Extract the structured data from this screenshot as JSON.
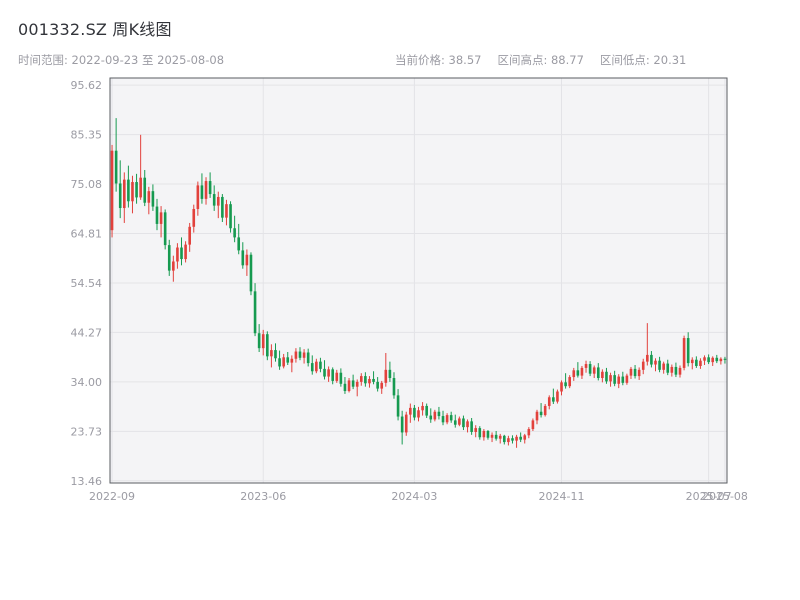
{
  "header": {
    "title": "001332.SZ 周K线图",
    "date_range_label": "时间范围: 2022-09-23 至 2025-08-08",
    "current_price_label": "当前价格: 38.57",
    "range_high_label": "区间高点: 88.77",
    "range_low_label": "区间低点: 20.31"
  },
  "chart_data": {
    "type": "candlestick",
    "title": "001332.SZ 周K线图",
    "interval": "weekly",
    "date_range": [
      "2022-09-23",
      "2025-08-08"
    ],
    "current_price": 38.57,
    "range_high": 88.77,
    "range_low": 20.31,
    "ylim": [
      13.0,
      97.1
    ],
    "y_ticks": [
      95.62,
      85.35,
      75.08,
      64.81,
      54.54,
      44.27,
      34.0,
      23.73,
      13.46
    ],
    "x_ticks": [
      {
        "label": "2022-09",
        "index": 0
      },
      {
        "label": "2023-06",
        "index": 37
      },
      {
        "label": "2024-03",
        "index": 74
      },
      {
        "label": "2024-11",
        "index": 110
      },
      {
        "label": "2025-07",
        "index": 146
      },
      {
        "label": "2025-08",
        "index": 150
      }
    ],
    "legend_position": "none",
    "grid": true,
    "colors": {
      "up": "#e2413c",
      "down": "#169a50",
      "plot_bg": "#f4f4f6",
      "grid": "#e3e3e7",
      "border": "#5a5c62",
      "axis_text": "#9b9ba3"
    },
    "ohlc": [
      [
        65.5,
        83.2,
        64.0,
        82.0
      ],
      [
        82.0,
        88.77,
        73.5,
        75.2
      ],
      [
        75.2,
        80.0,
        68.0,
        70.1
      ],
      [
        70.1,
        77.5,
        67.0,
        76.0
      ],
      [
        76.0,
        78.9,
        70.2,
        71.5
      ],
      [
        71.5,
        76.8,
        69.0,
        75.5
      ],
      [
        75.5,
        77.2,
        71.0,
        72.3
      ],
      [
        72.3,
        85.3,
        71.8,
        76.4
      ],
      [
        76.4,
        78.0,
        70.5,
        71.2
      ],
      [
        71.2,
        74.5,
        68.8,
        73.6
      ],
      [
        73.6,
        75.0,
        69.5,
        70.4
      ],
      [
        70.4,
        72.0,
        65.5,
        66.8
      ],
      [
        66.8,
        70.5,
        64.0,
        69.2
      ],
      [
        69.2,
        69.8,
        61.5,
        62.4
      ],
      [
        62.4,
        63.5,
        56.0,
        57.1
      ],
      [
        57.1,
        60.2,
        54.8,
        59.0
      ],
      [
        59.0,
        62.8,
        57.5,
        61.9
      ],
      [
        61.9,
        64.0,
        58.2,
        59.5
      ],
      [
        59.5,
        63.2,
        58.8,
        62.5
      ],
      [
        62.5,
        67.0,
        61.0,
        66.2
      ],
      [
        66.2,
        70.8,
        65.0,
        69.9
      ],
      [
        69.9,
        75.6,
        68.5,
        74.8
      ],
      [
        74.8,
        77.3,
        71.0,
        72.0
      ],
      [
        72.0,
        76.5,
        70.8,
        75.7
      ],
      [
        75.7,
        77.5,
        72.2,
        73.0
      ],
      [
        73.0,
        74.8,
        69.5,
        70.6
      ],
      [
        70.6,
        73.5,
        68.0,
        72.4
      ],
      [
        72.4,
        73.0,
        67.2,
        68.1
      ],
      [
        68.1,
        71.8,
        66.5,
        70.9
      ],
      [
        70.9,
        71.5,
        65.0,
        65.9
      ],
      [
        65.9,
        68.5,
        63.0,
        64.0
      ],
      [
        64.0,
        66.8,
        60.5,
        61.3
      ],
      [
        61.3,
        63.0,
        57.5,
        58.2
      ],
      [
        58.2,
        61.5,
        56.0,
        60.4
      ],
      [
        60.4,
        60.9,
        52.0,
        52.8
      ],
      [
        52.8,
        54.5,
        43.5,
        44.1
      ],
      [
        44.1,
        46.0,
        40.2,
        41.0
      ],
      [
        41.0,
        44.8,
        39.5,
        43.9
      ],
      [
        43.9,
        44.5,
        38.5,
        39.3
      ],
      [
        39.3,
        41.8,
        37.0,
        40.6
      ],
      [
        40.6,
        42.0,
        38.2,
        38.9
      ],
      [
        38.9,
        40.5,
        36.5,
        37.2
      ],
      [
        37.2,
        39.8,
        36.8,
        39.1
      ],
      [
        39.1,
        40.2,
        37.5,
        38.0
      ],
      [
        38.0,
        39.5,
        36.0,
        38.8
      ],
      [
        38.8,
        41.0,
        38.0,
        40.3
      ],
      [
        40.3,
        41.2,
        38.5,
        39.0
      ],
      [
        39.0,
        40.8,
        37.8,
        40.1
      ],
      [
        40.1,
        40.9,
        37.2,
        37.9
      ],
      [
        37.9,
        39.5,
        35.5,
        36.2
      ],
      [
        36.2,
        38.8,
        35.8,
        38.2
      ],
      [
        38.2,
        39.0,
        36.0,
        36.7
      ],
      [
        36.7,
        38.5,
        34.5,
        35.1
      ],
      [
        35.1,
        37.2,
        34.0,
        36.6
      ],
      [
        36.6,
        37.0,
        33.5,
        34.2
      ],
      [
        34.2,
        36.5,
        33.8,
        35.9
      ],
      [
        35.9,
        36.8,
        33.0,
        33.6
      ],
      [
        33.6,
        35.0,
        31.5,
        32.1
      ],
      [
        32.1,
        34.8,
        31.8,
        34.3
      ],
      [
        34.3,
        35.5,
        32.5,
        33.0
      ],
      [
        33.0,
        34.5,
        31.0,
        34.0
      ],
      [
        34.0,
        35.8,
        33.2,
        35.2
      ],
      [
        35.2,
        36.0,
        33.0,
        33.7
      ],
      [
        33.7,
        35.2,
        32.8,
        34.6
      ],
      [
        34.6,
        36.2,
        33.5,
        34.0
      ],
      [
        34.0,
        35.0,
        32.0,
        32.6
      ],
      [
        32.6,
        34.2,
        31.5,
        33.8
      ],
      [
        33.8,
        40.0,
        33.0,
        36.5
      ],
      [
        36.5,
        38.2,
        34.0,
        34.8
      ],
      [
        34.8,
        36.0,
        30.5,
        31.2
      ],
      [
        31.2,
        32.5,
        26.0,
        26.8
      ],
      [
        26.8,
        28.0,
        21.0,
        23.5
      ],
      [
        23.5,
        27.8,
        22.8,
        27.2
      ],
      [
        27.2,
        29.5,
        25.5,
        28.6
      ],
      [
        28.6,
        29.2,
        26.0,
        26.6
      ],
      [
        26.6,
        28.8,
        25.8,
        28.1
      ],
      [
        28.1,
        29.8,
        27.0,
        29.0
      ],
      [
        29.0,
        29.5,
        26.5,
        27.0
      ],
      [
        27.0,
        28.5,
        25.5,
        26.2
      ],
      [
        26.2,
        28.2,
        25.8,
        27.8
      ],
      [
        27.8,
        28.8,
        26.2,
        26.9
      ],
      [
        26.9,
        28.0,
        25.0,
        25.6
      ],
      [
        25.6,
        27.5,
        25.2,
        27.1
      ],
      [
        27.1,
        27.8,
        25.5,
        26.0
      ],
      [
        26.0,
        27.2,
        24.5,
        25.1
      ],
      [
        25.1,
        26.8,
        24.8,
        26.4
      ],
      [
        26.4,
        27.0,
        24.0,
        24.6
      ],
      [
        24.6,
        26.2,
        23.5,
        25.8
      ],
      [
        25.8,
        26.5,
        23.0,
        23.6
      ],
      [
        23.6,
        25.0,
        22.5,
        24.4
      ],
      [
        24.4,
        24.8,
        22.0,
        22.5
      ],
      [
        22.5,
        24.2,
        21.8,
        23.8
      ],
      [
        23.8,
        24.0,
        22.0,
        22.4
      ],
      [
        22.4,
        23.5,
        21.5,
        23.0
      ],
      [
        23.0,
        23.8,
        21.8,
        22.2
      ],
      [
        22.2,
        23.2,
        21.2,
        22.8
      ],
      [
        22.8,
        23.0,
        21.0,
        21.5
      ],
      [
        21.5,
        22.8,
        20.8,
        22.3
      ],
      [
        22.3,
        22.9,
        21.2,
        21.8
      ],
      [
        21.8,
        23.0,
        20.31,
        22.6
      ],
      [
        22.6,
        23.5,
        21.5,
        22.0
      ],
      [
        22.0,
        23.2,
        21.2,
        22.9
      ],
      [
        22.9,
        24.6,
        22.3,
        24.2
      ],
      [
        24.2,
        26.4,
        23.8,
        26.0
      ],
      [
        26.0,
        28.2,
        25.2,
        27.8
      ],
      [
        27.8,
        29.6,
        26.6,
        27.1
      ],
      [
        27.1,
        29.4,
        26.8,
        29.0
      ],
      [
        29.0,
        31.2,
        28.3,
        30.8
      ],
      [
        30.8,
        32.6,
        29.4,
        29.9
      ],
      [
        29.9,
        32.4,
        29.5,
        32.0
      ],
      [
        32.0,
        34.3,
        31.2,
        33.9
      ],
      [
        33.9,
        35.8,
        32.6,
        33.1
      ],
      [
        33.1,
        35.4,
        32.7,
        35.0
      ],
      [
        35.0,
        36.9,
        34.2,
        36.4
      ],
      [
        36.4,
        38.1,
        34.9,
        35.3
      ],
      [
        35.3,
        37.3,
        34.6,
        36.9
      ],
      [
        36.9,
        38.4,
        35.9,
        37.7
      ],
      [
        37.7,
        38.3,
        35.2,
        35.7
      ],
      [
        35.7,
        37.4,
        34.8,
        37.0
      ],
      [
        37.0,
        37.9,
        34.3,
        34.8
      ],
      [
        34.8,
        36.6,
        33.9,
        36.1
      ],
      [
        36.1,
        36.9,
        33.6,
        34.1
      ],
      [
        34.1,
        35.9,
        33.0,
        35.4
      ],
      [
        35.4,
        36.3,
        33.1,
        33.6
      ],
      [
        33.6,
        35.6,
        32.7,
        35.1
      ],
      [
        35.1,
        36.1,
        33.3,
        33.8
      ],
      [
        33.8,
        35.7,
        33.4,
        35.3
      ],
      [
        35.3,
        37.1,
        34.6,
        36.7
      ],
      [
        36.7,
        37.5,
        34.7,
        35.2
      ],
      [
        35.2,
        37.0,
        34.4,
        36.5
      ],
      [
        36.5,
        38.8,
        35.6,
        38.2
      ],
      [
        38.2,
        46.2,
        37.4,
        39.6
      ],
      [
        39.6,
        40.4,
        37.0,
        37.6
      ],
      [
        37.6,
        38.9,
        36.2,
        38.4
      ],
      [
        38.4,
        39.2,
        36.0,
        36.5
      ],
      [
        36.5,
        38.2,
        35.7,
        37.8
      ],
      [
        37.8,
        38.6,
        35.4,
        35.9
      ],
      [
        35.9,
        37.6,
        35.1,
        37.1
      ],
      [
        37.1,
        38.0,
        35.0,
        35.5
      ],
      [
        35.5,
        37.4,
        34.9,
        36.9
      ],
      [
        36.9,
        43.6,
        36.4,
        43.1
      ],
      [
        43.1,
        44.3,
        37.2,
        37.9
      ],
      [
        37.9,
        39.1,
        36.6,
        38.6
      ],
      [
        38.6,
        39.3,
        36.9,
        37.3
      ],
      [
        37.3,
        38.9,
        36.7,
        38.4
      ],
      [
        38.4,
        39.5,
        37.5,
        39.1
      ],
      [
        39.1,
        39.7,
        37.7,
        38.1
      ],
      [
        38.1,
        39.3,
        37.3,
        39.0
      ],
      [
        39.0,
        39.6,
        37.9,
        38.3
      ],
      [
        38.3,
        39.1,
        37.6,
        38.8
      ],
      [
        38.8,
        39.2,
        37.8,
        38.57
      ]
    ]
  }
}
